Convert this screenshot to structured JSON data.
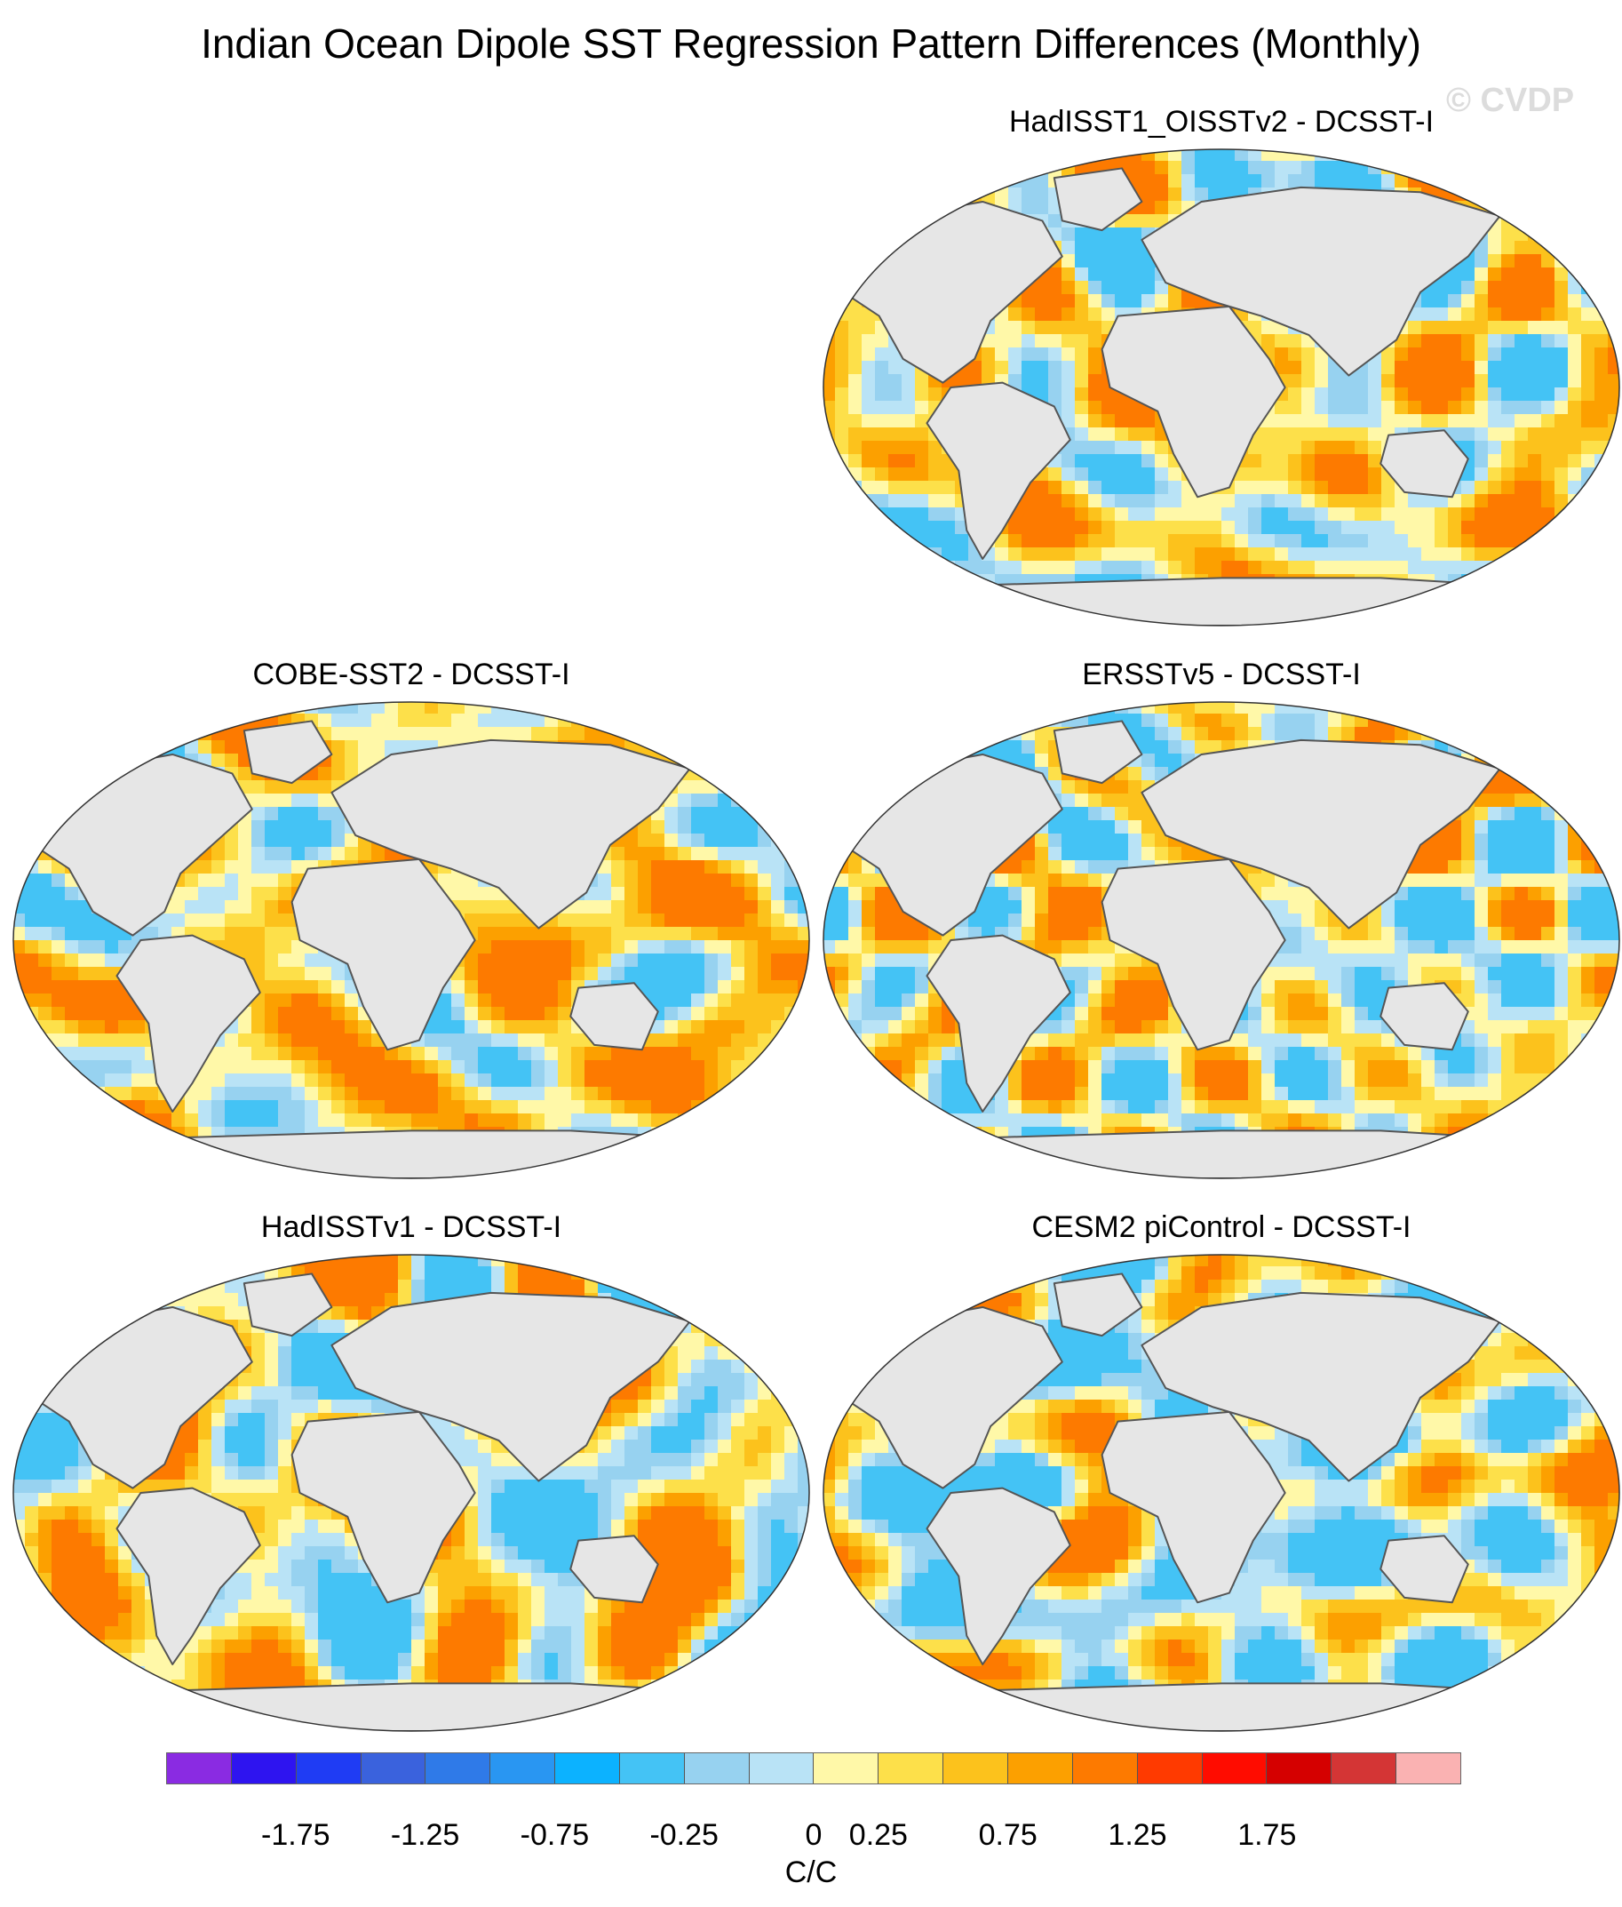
{
  "title": "Indian Ocean Dipole SST Regression Pattern Differences (Monthly)",
  "watermark": "© CVDP",
  "panels": [
    {
      "label": "HadISST1_OISSTv2 - DCSST-I",
      "pattern": 0
    },
    {
      "label": "COBE-SST2 - DCSST-I",
      "pattern": 1
    },
    {
      "label": "ERSSTv5 - DCSST-I",
      "pattern": 2
    },
    {
      "label": "HadISSTv1 - DCSST-I",
      "pattern": 3
    },
    {
      "label": "CESM2 piControl - DCSST-I",
      "pattern": 4
    }
  ],
  "colorbar": {
    "colors": [
      "#8a2be2",
      "#2e14f0",
      "#1f3cf4",
      "#3a62dd",
      "#2f7ae8",
      "#2996f2",
      "#0cb2ff",
      "#44c3f5",
      "#97d2f0",
      "#b9e3f6",
      "#fff8a8",
      "#fde04a",
      "#fcc21c",
      "#fca000",
      "#fd7a00",
      "#ff3a00",
      "#ff0c00",
      "#d50000",
      "#d43535",
      "#fab2b2"
    ],
    "tick_labels": [
      "-1.75",
      "-1.25",
      "-0.75",
      "-0.25",
      "0",
      "0.25",
      "0.75",
      "1.25",
      "1.75"
    ],
    "units": "C/C"
  },
  "map_colors": {
    "land": "#e6e6e6",
    "coast": "#555555"
  }
}
